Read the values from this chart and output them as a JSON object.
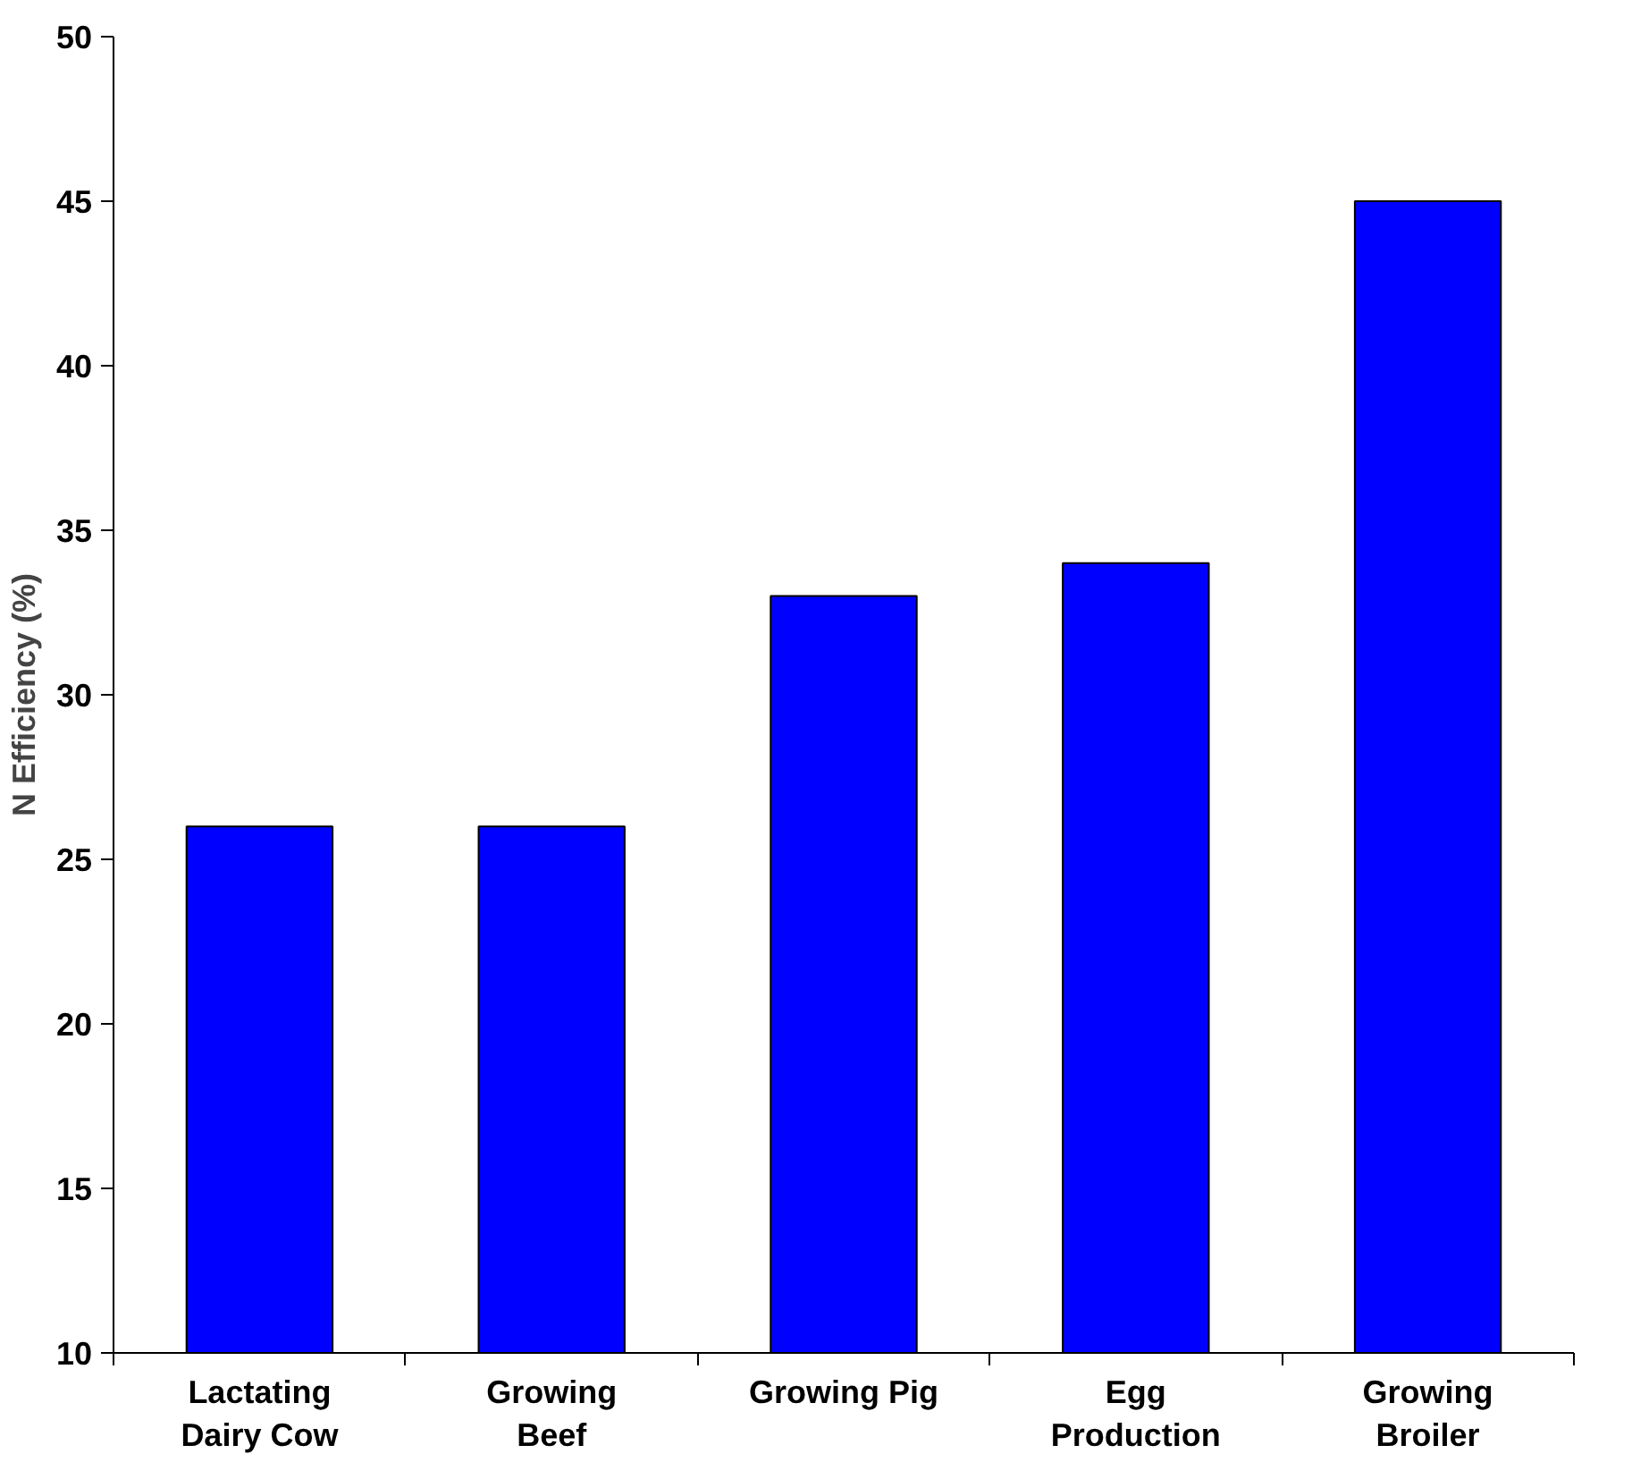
{
  "chart_data": {
    "type": "bar",
    "ylabel": "N Efficiency (%)",
    "categories": [
      "Lactating Dairy Cow",
      "Growing Beef",
      "Growing Pig",
      "Egg Production",
      "Growing Broiler"
    ],
    "values": [
      26,
      26,
      33,
      34,
      45
    ],
    "color": "#0000ff",
    "ylim": [
      10,
      50
    ],
    "yticks": [
      10,
      15,
      20,
      25,
      30,
      35,
      40,
      45,
      50
    ],
    "grid": false
  }
}
